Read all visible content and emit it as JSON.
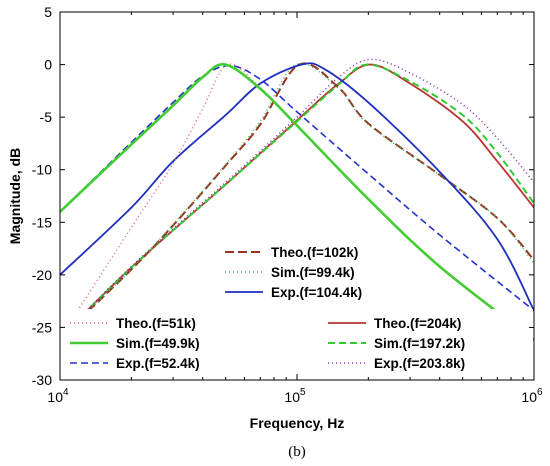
{
  "chart_data": {
    "type": "line",
    "xlabel": "Frequency, Hz",
    "ylabel": "Magnitude, dB",
    "x_scale": "log",
    "xlim": [
      10000,
      1000000
    ],
    "ylim": [
      -30,
      5
    ],
    "x_ticks": [
      {
        "value": 10000,
        "base": "10",
        "exp": "4"
      },
      {
        "value": 100000,
        "base": "10",
        "exp": "5"
      },
      {
        "value": 1000000,
        "base": "10",
        "exp": "6"
      }
    ],
    "y_ticks": [
      5,
      0,
      -5,
      -10,
      -15,
      -20,
      -25,
      -30
    ],
    "grid": false,
    "caption": "(b)",
    "series": [
      {
        "name": "Theo.(f=51k)",
        "color": "#e06060",
        "dash": "1,3",
        "width": 1.4,
        "x": [
          10000,
          20000,
          30000,
          40000,
          51000,
          70000,
          100000,
          200000,
          400000,
          1000000
        ],
        "y": [
          -26,
          -15.5,
          -9.4,
          -4.2,
          0,
          -2.2,
          -5.8,
          -12.8,
          -19.2,
          -26
        ]
      },
      {
        "name": "Sim.(f=49.9k)",
        "color": "#44cc33",
        "dash": "",
        "width": 2.6,
        "x": [
          10000,
          20000,
          30000,
          40000,
          49900,
          70000,
          100000,
          200000,
          400000,
          1000000
        ],
        "y": [
          -14,
          -7.6,
          -3.9,
          -1.2,
          0,
          -2.3,
          -5.8,
          -12.8,
          -19.2,
          -26.2
        ]
      },
      {
        "name": "Exp.(f=52.4k)",
        "color": "#2233cc",
        "dash": "7,4",
        "width": 1.6,
        "x": [
          10000,
          20000,
          30000,
          40000,
          52400,
          70000,
          100000,
          200000,
          400000,
          1000000
        ],
        "y": [
          -14,
          -7.4,
          -3.6,
          -1.1,
          -0.1,
          -1.4,
          -4.5,
          -10.4,
          -16.2,
          -23.4
        ]
      },
      {
        "name": "Theo.(f=102k)",
        "color": "#9b3322",
        "dash": "9,4",
        "width": 2,
        "x": [
          10000,
          20000,
          30000,
          50000,
          70000,
          102000,
          150000,
          200000,
          400000,
          700000,
          1000000
        ],
        "y": [
          -26,
          -19.5,
          -15.3,
          -9.6,
          -5.7,
          0,
          -2.2,
          -5.6,
          -10.5,
          -14.6,
          -18.6
        ]
      },
      {
        "name": "Sim.(f=99.4k)",
        "color": "#33bb55",
        "dash": "1,3",
        "width": 1.5,
        "x": [
          10000,
          20000,
          30000,
          50000,
          70000,
          99400,
          150000,
          200000,
          400000,
          700000,
          1000000
        ],
        "y": [
          -26,
          -19.5,
          -15.2,
          -9.5,
          -5.4,
          0,
          -2.3,
          -5.7,
          -10.5,
          -14.6,
          -18.9
        ]
      },
      {
        "name": "Exp.(f=104.4k)",
        "color": "#1f2fc0",
        "dash": "",
        "width": 1.8,
        "x": [
          10000,
          20000,
          30000,
          50000,
          70000,
          104400,
          130000,
          200000,
          400000,
          700000,
          1000000
        ],
        "y": [
          -20,
          -13.6,
          -9.2,
          -4.8,
          -1.8,
          0,
          -0.4,
          -3.6,
          -10.2,
          -16.6,
          -23.4
        ]
      },
      {
        "name": "Theo.(f=204k)",
        "color": "#bb3333",
        "dash": "",
        "width": 1.8,
        "x": [
          10000,
          20000,
          50000,
          100000,
          150000,
          204000,
          300000,
          500000,
          700000,
          1000000
        ],
        "y": [
          -26,
          -19.3,
          -11.4,
          -5.3,
          -1.8,
          0,
          -1.8,
          -5.4,
          -9.2,
          -13.6
        ]
      },
      {
        "name": "Sim.(f=197.2k)",
        "color": "#33cc33",
        "dash": "7,4",
        "width": 2,
        "x": [
          10000,
          20000,
          50000,
          100000,
          150000,
          197200,
          300000,
          500000,
          700000,
          1000000
        ],
        "y": [
          -26,
          -19.3,
          -11.4,
          -5.4,
          -1.9,
          0,
          -1.6,
          -4.8,
          -8.4,
          -13.2
        ]
      },
      {
        "name": "Exp.(f=203.8k)",
        "color": "#8833aa",
        "dash": "1,3",
        "width": 1.6,
        "x": [
          10000,
          20000,
          50000,
          100000,
          150000,
          203800,
          300000,
          500000,
          700000,
          1000000
        ],
        "y": [
          -26,
          -19.2,
          -11.2,
          -5.0,
          -1.2,
          0.5,
          -0.8,
          -3.8,
          -7.0,
          -11.2
        ]
      }
    ],
    "legends": [
      {
        "items": [
          3,
          4,
          5
        ]
      },
      {
        "items": [
          0,
          1,
          2
        ]
      },
      {
        "items": [
          6,
          7,
          8
        ]
      }
    ]
  }
}
